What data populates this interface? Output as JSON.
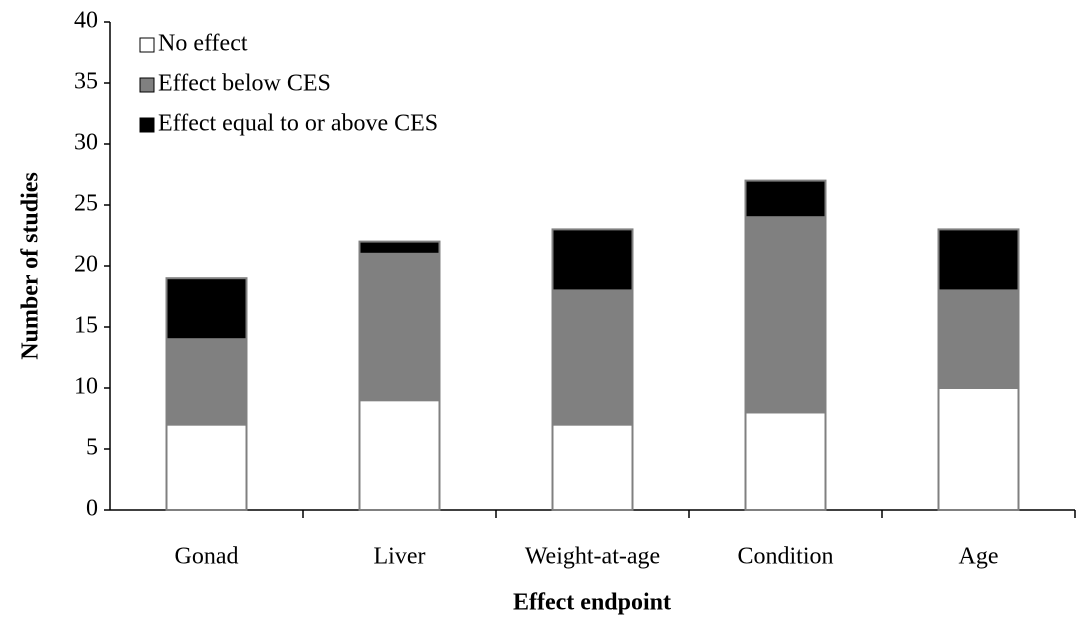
{
  "chart_data": {
    "type": "stacked-bar",
    "x_label": "Effect endpoint",
    "y_label": "Number of studies",
    "categories": [
      "Gonad",
      "Liver",
      "Weight-at-age",
      "Condition",
      "Age"
    ],
    "series": [
      {
        "name": "No effect",
        "color": "#ffffff",
        "values": [
          7,
          9,
          7,
          8,
          10
        ]
      },
      {
        "name": "Effect below CES",
        "color": "#808080",
        "values": [
          7,
          12,
          11,
          16,
          8
        ]
      },
      {
        "name": "Effect equal to or above CES",
        "color": "#000000",
        "values": [
          5,
          1,
          5,
          3,
          5
        ]
      }
    ],
    "ylim": [
      0,
      40
    ],
    "yticks": [
      0,
      5,
      10,
      15,
      20,
      25,
      30,
      35,
      40
    ],
    "legend": "top-left"
  }
}
